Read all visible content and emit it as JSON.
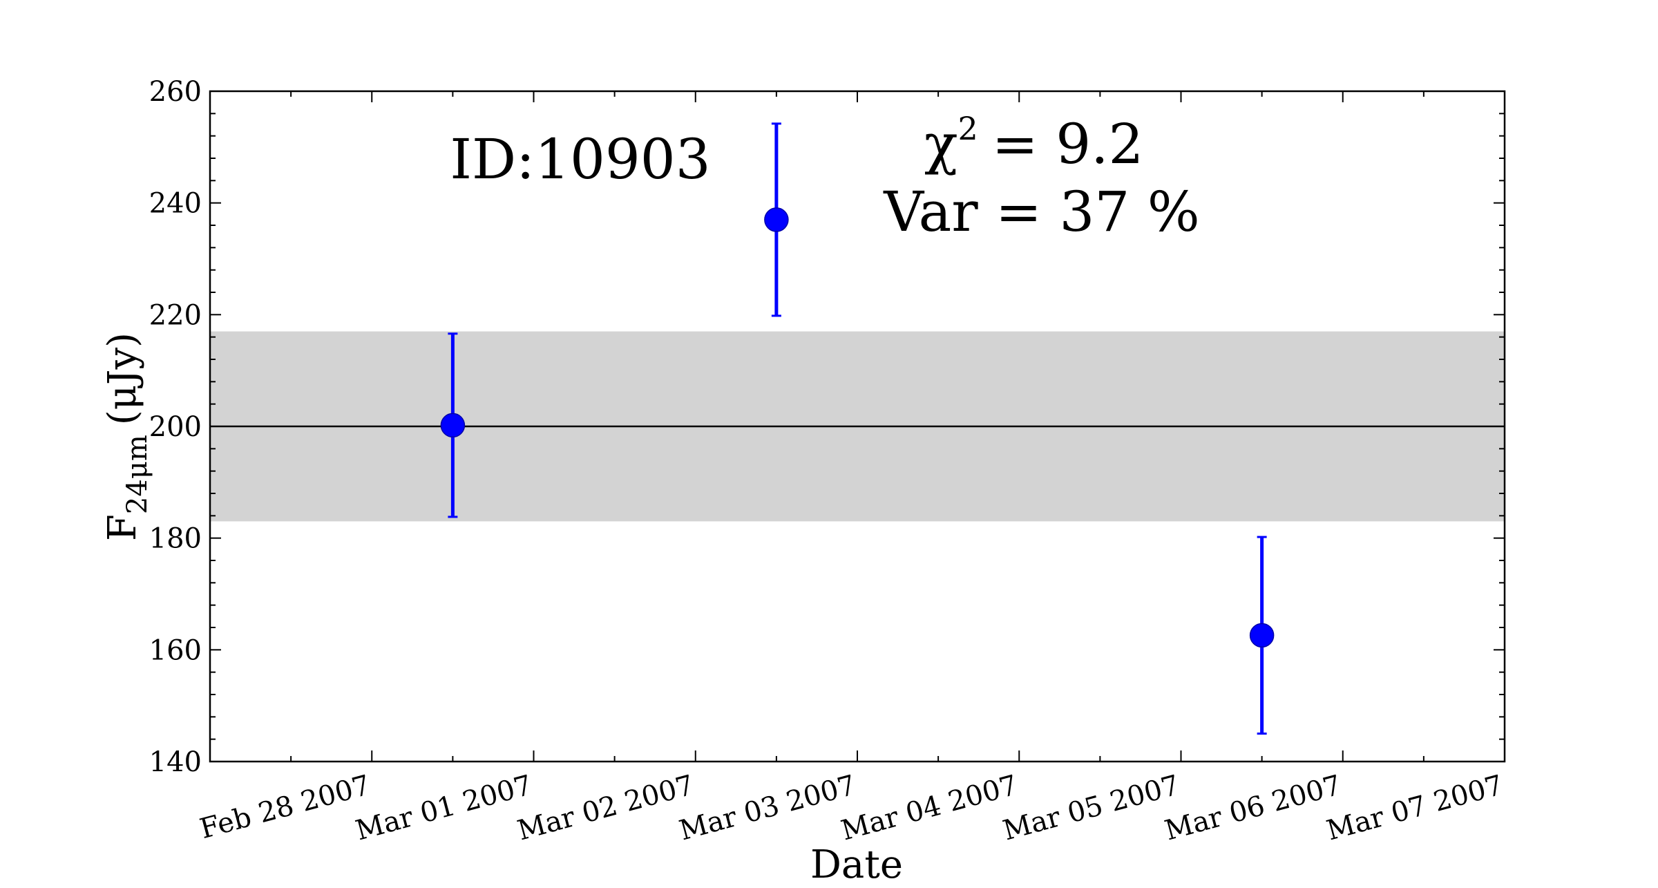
{
  "chart_data": {
    "type": "scatter",
    "xlabel": "Date",
    "ylabel_main": "F",
    "ylabel_sub": "24μm",
    "ylabel_unit": "(μJy)",
    "ylim": [
      140,
      260
    ],
    "yticks": [
      140,
      160,
      180,
      200,
      220,
      240,
      260
    ],
    "xlim": [
      "2007-02-27",
      "2007-03-07"
    ],
    "xtick_dates": [
      "2007-02-28",
      "2007-03-01",
      "2007-03-02",
      "2007-03-03",
      "2007-03-04",
      "2007-03-05",
      "2007-03-06",
      "2007-03-07"
    ],
    "xtick_labels": [
      "Feb 28 2007",
      "Mar 01 2007",
      "Mar 02 2007",
      "Mar 03 2007",
      "Mar 04 2007",
      "Mar 05 2007",
      "Mar 06 2007",
      "Mar 07 2007"
    ],
    "points": [
      {
        "x": "2007-02-28 12:00",
        "y": 200.2,
        "yerr_low": 183.8,
        "yerr_high": 216.6
      },
      {
        "x": "2007-03-02 12:00",
        "y": 237.0,
        "yerr_low": 219.8,
        "yerr_high": 254.2
      },
      {
        "x": "2007-03-05 12:00",
        "y": 162.6,
        "yerr_low": 145.0,
        "yerr_high": 180.2
      }
    ],
    "mean_line": 200.0,
    "band": [
      183.0,
      217.0
    ],
    "grid": false,
    "colors": {
      "points": "#0000ff",
      "band": "#d3d3d3",
      "mean_line": "#000000"
    },
    "annotations": {
      "id_text": "ID:10903",
      "chi_symbol": "χ",
      "chi_exponent": "2",
      "chi_value": "= 9.2",
      "var_text": "Var = 37 %"
    }
  }
}
